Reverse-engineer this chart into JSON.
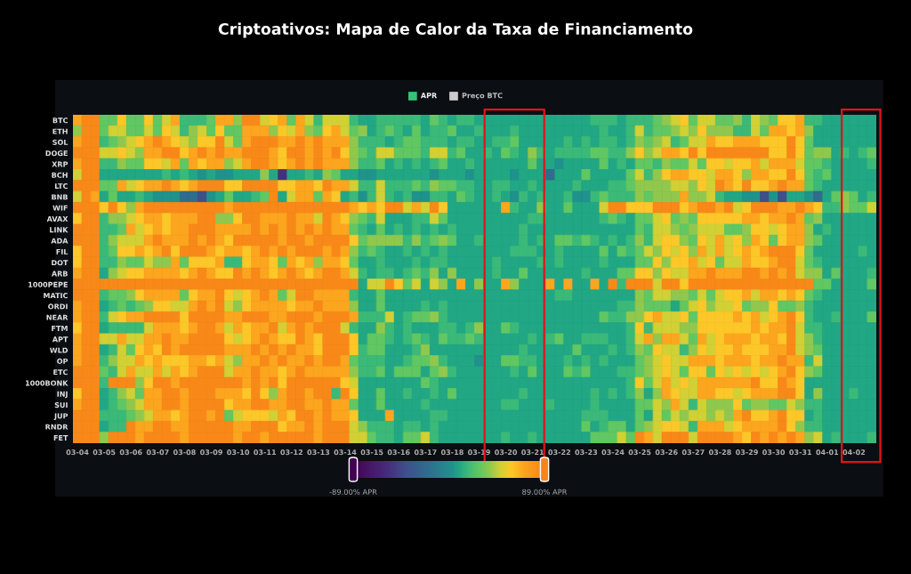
{
  "chart_data": {
    "type": "heatmap",
    "title": "Criptoativos: Mapa de Calor da Taxa de Financiamento",
    "annotations": [
      "APR",
      "Preço BTC"
    ],
    "categories": [
      "03-04",
      null,
      null,
      "03-05",
      null,
      null,
      "03-06",
      null,
      null,
      "03-07",
      null,
      null,
      "03-08",
      null,
      null,
      "03-09",
      null,
      null,
      "03-10",
      null,
      null,
      "03-11",
      null,
      null,
      "03-12",
      null,
      null,
      "03-13",
      null,
      null,
      "03-14",
      null,
      null,
      "03-15",
      null,
      null,
      "03-16",
      null,
      null,
      "03-17",
      null,
      null,
      "03-18",
      null,
      null,
      "03-19",
      null,
      null,
      "03-20",
      null,
      null,
      "03-21",
      null,
      null,
      "03-22",
      null,
      null,
      "03-23",
      null,
      null,
      "03-24",
      null,
      null,
      "03-25",
      null,
      null,
      "03-26",
      null,
      null,
      "03-27",
      null,
      null,
      "03-28",
      null,
      null,
      "03-29",
      null,
      null,
      "03-30",
      null,
      null,
      "03-31",
      null,
      null,
      "04-01",
      null,
      null,
      "04-02",
      null,
      null
    ],
    "y_categories": [
      "BTC",
      "ETH",
      "SOL",
      "DOGE",
      "XRP",
      "BCH",
      "LTC",
      "BNB",
      "WIF",
      "AVAX",
      "LINK",
      "ADA",
      "FIL",
      "DOT",
      "ARB",
      "1000PEPE",
      "MATIC",
      "ORDI",
      "NEAR",
      "FTM",
      "APT",
      "WLD",
      "OP",
      "ETC",
      "1000BONK",
      "INJ",
      "SUI",
      "JUP",
      "RNDR",
      "FET"
    ],
    "cells": [
      [
        70,
        85,
        85,
        28,
        28,
        58,
        28,
        28,
        58,
        28,
        48,
        70,
        18,
        18,
        18,
        28,
        70,
        70,
        38,
        85,
        85,
        48,
        58,
        70,
        28,
        70,
        48,
        18,
        48,
        48,
        48,
        18,
        10,
        10,
        18,
        18,
        18,
        18,
        18,
        10,
        28,
        18,
        10,
        18,
        18,
        10,
        10,
        10,
        10,
        10,
        10,
        10,
        10,
        10,
        10,
        10,
        10,
        10,
        18,
        18,
        18,
        10,
        18,
        18,
        18,
        28,
        38,
        48,
        58,
        28,
        48,
        48,
        28,
        28,
        38,
        18,
        48,
        38,
        28,
        58,
        58,
        70,
        18,
        18,
        10,
        10,
        10,
        10,
        10,
        10
      ],
      [
        38,
        85,
        85,
        28,
        48,
        48,
        28,
        28,
        48,
        28,
        58,
        48,
        18,
        38,
        48,
        28,
        58,
        28,
        28,
        70,
        70,
        70,
        38,
        58,
        48,
        70,
        38,
        28,
        58,
        70,
        48,
        28,
        38,
        10,
        18,
        28,
        18,
        10,
        28,
        10,
        18,
        18,
        28,
        10,
        10,
        18,
        10,
        10,
        10,
        18,
        10,
        10,
        10,
        10,
        10,
        10,
        10,
        10,
        10,
        18,
        10,
        10,
        18,
        48,
        18,
        28,
        28,
        38,
        48,
        38,
        58,
        38,
        38,
        38,
        18,
        18,
        48,
        28,
        70,
        70,
        58,
        70,
        38,
        10,
        10,
        10,
        10,
        10,
        10,
        10
      ],
      [
        70,
        85,
        85,
        18,
        28,
        38,
        48,
        58,
        70,
        85,
        70,
        58,
        48,
        38,
        58,
        58,
        85,
        48,
        28,
        70,
        85,
        85,
        85,
        70,
        70,
        85,
        70,
        85,
        70,
        70,
        70,
        38,
        18,
        18,
        18,
        10,
        18,
        28,
        28,
        18,
        18,
        18,
        10,
        18,
        18,
        10,
        10,
        18,
        18,
        28,
        10,
        10,
        10,
        10,
        10,
        18,
        10,
        18,
        10,
        18,
        18,
        10,
        18,
        38,
        28,
        38,
        48,
        18,
        28,
        48,
        48,
        70,
        58,
        58,
        70,
        70,
        70,
        58,
        58,
        58,
        85,
        58,
        28,
        10,
        10,
        10,
        10,
        10,
        10,
        10
      ],
      [
        85,
        85,
        85,
        48,
        48,
        58,
        48,
        38,
        70,
        70,
        85,
        85,
        58,
        70,
        85,
        70,
        85,
        70,
        70,
        85,
        85,
        85,
        70,
        58,
        85,
        85,
        70,
        85,
        70,
        85,
        58,
        38,
        28,
        18,
        48,
        48,
        28,
        28,
        28,
        18,
        48,
        48,
        18,
        28,
        10,
        10,
        18,
        10,
        28,
        18,
        10,
        38,
        18,
        10,
        18,
        18,
        18,
        18,
        28,
        28,
        18,
        18,
        38,
        58,
        38,
        48,
        70,
        70,
        58,
        85,
        58,
        85,
        85,
        85,
        85,
        85,
        85,
        85,
        58,
        58,
        85,
        58,
        28,
        38,
        38,
        10,
        18,
        10,
        18,
        28
      ],
      [
        70,
        85,
        85,
        18,
        18,
        38,
        28,
        28,
        58,
        58,
        48,
        70,
        28,
        70,
        58,
        70,
        70,
        38,
        48,
        70,
        85,
        85,
        70,
        58,
        70,
        85,
        70,
        85,
        70,
        70,
        70,
        38,
        18,
        18,
        28,
        10,
        18,
        10,
        18,
        10,
        18,
        28,
        10,
        10,
        18,
        10,
        10,
        10,
        10,
        10,
        10,
        28,
        10,
        10,
        3,
        10,
        10,
        10,
        10,
        28,
        10,
        18,
        10,
        28,
        28,
        18,
        38,
        28,
        28,
        48,
        28,
        58,
        58,
        48,
        58,
        58,
        70,
        48,
        70,
        70,
        70,
        48,
        28,
        28,
        18,
        10,
        10,
        10,
        10,
        18
      ],
      [
        48,
        85,
        85,
        10,
        10,
        10,
        10,
        10,
        10,
        10,
        18,
        10,
        18,
        10,
        3,
        10,
        3,
        3,
        10,
        10,
        10,
        38,
        10,
        -55,
        10,
        10,
        18,
        10,
        38,
        28,
        10,
        10,
        3,
        3,
        10,
        10,
        10,
        10,
        10,
        10,
        3,
        10,
        10,
        10,
        3,
        10,
        10,
        10,
        10,
        3,
        10,
        10,
        10,
        -20,
        10,
        10,
        10,
        28,
        10,
        10,
        10,
        10,
        28,
        48,
        18,
        38,
        58,
        70,
        70,
        58,
        58,
        48,
        70,
        70,
        58,
        38,
        70,
        70,
        58,
        58,
        85,
        58,
        28,
        18,
        28,
        10,
        10,
        10,
        10,
        10
      ],
      [
        85,
        85,
        85,
        28,
        28,
        70,
        48,
        58,
        70,
        70,
        85,
        70,
        58,
        70,
        85,
        85,
        85,
        58,
        58,
        85,
        85,
        85,
        85,
        58,
        58,
        70,
        70,
        58,
        85,
        70,
        70,
        48,
        18,
        18,
        48,
        18,
        18,
        18,
        28,
        18,
        38,
        28,
        28,
        18,
        18,
        10,
        10,
        18,
        18,
        10,
        10,
        18,
        10,
        10,
        10,
        10,
        18,
        10,
        10,
        10,
        18,
        18,
        28,
        38,
        38,
        38,
        38,
        48,
        48,
        38,
        58,
        48,
        85,
        70,
        58,
        85,
        58,
        58,
        70,
        85,
        70,
        70,
        28,
        18,
        10,
        10,
        10,
        10,
        10,
        10
      ],
      [
        48,
        85,
        70,
        10,
        28,
        10,
        10,
        18,
        10,
        3,
        3,
        3,
        -20,
        -20,
        -40,
        3,
        10,
        28,
        10,
        10,
        18,
        28,
        85,
        10,
        48,
        70,
        70,
        28,
        70,
        58,
        10,
        18,
        3,
        18,
        48,
        18,
        10,
        18,
        3,
        3,
        18,
        18,
        10,
        28,
        18,
        10,
        10,
        18,
        10,
        3,
        18,
        10,
        18,
        10,
        10,
        18,
        3,
        3,
        18,
        28,
        18,
        18,
        18,
        38,
        28,
        38,
        38,
        38,
        70,
        38,
        38,
        48,
        18,
        10,
        10,
        3,
        3,
        -40,
        3,
        -40,
        10,
        10,
        3,
        -20,
        10,
        28,
        38,
        28,
        10,
        18
      ],
      [
        85,
        85,
        85,
        58,
        85,
        58,
        38,
        70,
        85,
        85,
        85,
        85,
        85,
        85,
        85,
        85,
        85,
        70,
        85,
        85,
        85,
        85,
        85,
        85,
        85,
        85,
        85,
        85,
        85,
        85,
        85,
        70,
        58,
        70,
        58,
        85,
        85,
        48,
        70,
        48,
        85,
        58,
        10,
        10,
        10,
        10,
        10,
        10,
        70,
        18,
        10,
        10,
        38,
        10,
        10,
        28,
        10,
        10,
        10,
        48,
        85,
        85,
        58,
        58,
        58,
        85,
        85,
        85,
        58,
        70,
        85,
        85,
        70,
        85,
        48,
        58,
        85,
        85,
        85,
        70,
        70,
        85,
        70,
        58,
        18,
        18,
        38,
        28,
        28,
        48
      ],
      [
        58,
        85,
        85,
        18,
        38,
        38,
        48,
        58,
        70,
        70,
        58,
        70,
        70,
        70,
        85,
        85,
        38,
        38,
        58,
        85,
        85,
        70,
        70,
        70,
        85,
        70,
        70,
        48,
        85,
        70,
        58,
        38,
        28,
        18,
        48,
        10,
        10,
        10,
        18,
        18,
        48,
        28,
        10,
        10,
        10,
        10,
        10,
        10,
        10,
        10,
        10,
        18,
        18,
        10,
        10,
        10,
        10,
        10,
        10,
        18,
        28,
        18,
        10,
        28,
        28,
        48,
        58,
        28,
        38,
        28,
        58,
        58,
        58,
        58,
        58,
        70,
        70,
        58,
        70,
        70,
        85,
        70,
        28,
        38,
        10,
        10,
        10,
        10,
        10,
        10
      ],
      [
        85,
        85,
        85,
        18,
        18,
        28,
        70,
        48,
        58,
        70,
        58,
        70,
        70,
        85,
        85,
        85,
        70,
        70,
        70,
        70,
        85,
        70,
        85,
        70,
        85,
        70,
        85,
        70,
        85,
        70,
        70,
        28,
        18,
        10,
        28,
        10,
        18,
        10,
        18,
        10,
        18,
        10,
        18,
        10,
        10,
        10,
        10,
        10,
        10,
        10,
        18,
        10,
        10,
        10,
        10,
        10,
        10,
        10,
        10,
        10,
        10,
        10,
        10,
        28,
        18,
        48,
        48,
        38,
        28,
        38,
        48,
        48,
        48,
        28,
        28,
        38,
        58,
        58,
        48,
        58,
        70,
        70,
        38,
        10,
        18,
        10,
        10,
        10,
        10,
        10
      ],
      [
        85,
        85,
        85,
        18,
        38,
        48,
        48,
        48,
        70,
        85,
        70,
        70,
        70,
        85,
        70,
        85,
        70,
        58,
        85,
        85,
        85,
        85,
        85,
        70,
        85,
        85,
        70,
        85,
        85,
        85,
        85,
        58,
        28,
        38,
        38,
        38,
        38,
        18,
        38,
        18,
        28,
        38,
        28,
        10,
        10,
        18,
        10,
        10,
        10,
        10,
        18,
        10,
        18,
        10,
        28,
        28,
        18,
        28,
        18,
        10,
        18,
        10,
        18,
        38,
        18,
        48,
        58,
        58,
        38,
        28,
        58,
        48,
        70,
        48,
        58,
        38,
        70,
        58,
        28,
        58,
        70,
        70,
        38,
        28,
        10,
        10,
        10,
        10,
        10,
        10
      ],
      [
        58,
        85,
        85,
        18,
        28,
        58,
        58,
        70,
        58,
        70,
        85,
        58,
        85,
        85,
        85,
        70,
        58,
        70,
        70,
        58,
        70,
        85,
        70,
        85,
        70,
        85,
        85,
        85,
        70,
        85,
        70,
        38,
        18,
        28,
        18,
        10,
        10,
        18,
        10,
        18,
        10,
        18,
        10,
        10,
        10,
        10,
        10,
        10,
        10,
        18,
        18,
        18,
        10,
        10,
        18,
        10,
        10,
        10,
        10,
        28,
        10,
        28,
        18,
        28,
        48,
        38,
        58,
        48,
        58,
        38,
        70,
        48,
        70,
        48,
        58,
        70,
        58,
        70,
        85,
        85,
        85,
        58,
        28,
        10,
        10,
        10,
        10,
        10,
        18,
        10
      ],
      [
        58,
        85,
        85,
        18,
        18,
        38,
        28,
        28,
        48,
        38,
        38,
        70,
        28,
        58,
        58,
        58,
        70,
        18,
        18,
        58,
        70,
        70,
        58,
        28,
        70,
        58,
        70,
        38,
        70,
        70,
        58,
        28,
        10,
        10,
        18,
        10,
        10,
        10,
        18,
        10,
        18,
        18,
        10,
        10,
        10,
        10,
        10,
        18,
        10,
        10,
        10,
        10,
        18,
        10,
        18,
        10,
        10,
        10,
        10,
        18,
        10,
        10,
        10,
        28,
        28,
        58,
        38,
        58,
        58,
        70,
        48,
        58,
        28,
        48,
        48,
        70,
        58,
        58,
        70,
        85,
        85,
        48,
        28,
        18,
        10,
        10,
        10,
        10,
        10,
        10
      ],
      [
        70,
        85,
        85,
        10,
        38,
        48,
        58,
        58,
        70,
        70,
        70,
        70,
        58,
        70,
        85,
        70,
        58,
        58,
        85,
        70,
        85,
        70,
        58,
        70,
        85,
        70,
        58,
        70,
        85,
        85,
        70,
        48,
        18,
        10,
        18,
        18,
        10,
        18,
        28,
        18,
        38,
        10,
        38,
        10,
        10,
        10,
        10,
        18,
        10,
        10,
        28,
        10,
        10,
        10,
        10,
        10,
        10,
        18,
        10,
        10,
        10,
        28,
        28,
        58,
        58,
        38,
        58,
        48,
        48,
        70,
        70,
        85,
        70,
        70,
        70,
        85,
        85,
        70,
        85,
        70,
        85,
        48,
        38,
        38,
        10,
        28,
        10,
        10,
        10,
        18
      ],
      [
        85,
        85,
        85,
        85,
        85,
        85,
        85,
        85,
        85,
        85,
        85,
        85,
        85,
        85,
        85,
        85,
        85,
        85,
        85,
        85,
        85,
        85,
        85,
        85,
        85,
        85,
        85,
        85,
        85,
        85,
        85,
        85,
        10,
        48,
        48,
        85,
        58,
        28,
        48,
        10,
        48,
        38,
        10,
        70,
        10,
        38,
        10,
        10,
        70,
        38,
        10,
        10,
        10,
        70,
        10,
        70,
        10,
        10,
        70,
        10,
        85,
        18,
        85,
        85,
        85,
        48,
        85,
        85,
        58,
        85,
        85,
        85,
        85,
        85,
        85,
        85,
        85,
        85,
        85,
        85,
        85,
        85,
        85,
        28,
        28,
        10,
        10,
        10,
        10,
        28
      ],
      [
        85,
        85,
        85,
        18,
        28,
        28,
        38,
        58,
        70,
        70,
        70,
        70,
        28,
        58,
        70,
        70,
        85,
        58,
        48,
        58,
        70,
        85,
        70,
        28,
        48,
        85,
        85,
        70,
        70,
        70,
        70,
        18,
        10,
        10,
        28,
        10,
        10,
        10,
        10,
        10,
        10,
        10,
        10,
        10,
        10,
        10,
        10,
        10,
        10,
        10,
        10,
        10,
        10,
        10,
        18,
        18,
        10,
        10,
        10,
        10,
        10,
        10,
        10,
        38,
        28,
        48,
        48,
        38,
        38,
        28,
        48,
        28,
        48,
        58,
        58,
        70,
        48,
        70,
        70,
        58,
        70,
        58,
        28,
        18,
        10,
        10,
        10,
        10,
        10,
        10
      ],
      [
        70,
        85,
        85,
        10,
        18,
        28,
        18,
        28,
        38,
        58,
        58,
        48,
        48,
        70,
        85,
        70,
        85,
        48,
        38,
        58,
        70,
        70,
        70,
        70,
        58,
        70,
        70,
        85,
        70,
        70,
        70,
        38,
        10,
        10,
        28,
        10,
        10,
        10,
        10,
        18,
        10,
        18,
        10,
        10,
        10,
        10,
        10,
        10,
        10,
        10,
        10,
        10,
        10,
        10,
        10,
        10,
        10,
        10,
        10,
        10,
        10,
        18,
        18,
        38,
        28,
        28,
        28,
        10,
        28,
        48,
        58,
        38,
        48,
        48,
        58,
        28,
        38,
        38,
        58,
        28,
        28,
        38,
        18,
        10,
        10,
        10,
        10,
        10,
        10,
        10
      ],
      [
        70,
        85,
        85,
        18,
        48,
        58,
        70,
        70,
        85,
        85,
        85,
        85,
        58,
        85,
        85,
        85,
        85,
        70,
        70,
        85,
        85,
        85,
        70,
        70,
        85,
        85,
        85,
        70,
        85,
        85,
        85,
        70,
        18,
        18,
        18,
        48,
        10,
        18,
        28,
        28,
        38,
        18,
        10,
        10,
        10,
        10,
        10,
        10,
        10,
        10,
        10,
        10,
        10,
        10,
        10,
        10,
        10,
        10,
        10,
        28,
        18,
        18,
        38,
        38,
        58,
        70,
        48,
        48,
        58,
        28,
        58,
        58,
        58,
        58,
        70,
        58,
        70,
        48,
        58,
        70,
        85,
        58,
        18,
        10,
        10,
        18,
        10,
        10,
        10,
        28
      ],
      [
        58,
        85,
        85,
        10,
        18,
        18,
        18,
        18,
        48,
        70,
        70,
        70,
        58,
        70,
        85,
        85,
        70,
        48,
        70,
        58,
        70,
        70,
        85,
        48,
        70,
        85,
        70,
        85,
        85,
        85,
        48,
        18,
        10,
        10,
        38,
        18,
        10,
        18,
        10,
        10,
        10,
        18,
        18,
        10,
        18,
        38,
        10,
        10,
        28,
        18,
        10,
        10,
        10,
        10,
        10,
        10,
        10,
        10,
        10,
        10,
        10,
        10,
        18,
        58,
        18,
        48,
        48,
        48,
        38,
        38,
        58,
        58,
        58,
        58,
        58,
        58,
        70,
        58,
        70,
        70,
        85,
        48,
        18,
        18,
        10,
        10,
        10,
        10,
        10,
        10
      ],
      [
        70,
        85,
        85,
        48,
        48,
        70,
        48,
        48,
        70,
        70,
        85,
        70,
        70,
        85,
        85,
        85,
        85,
        58,
        48,
        58,
        70,
        85,
        70,
        58,
        58,
        85,
        70,
        58,
        85,
        85,
        85,
        58,
        10,
        28,
        28,
        18,
        10,
        18,
        28,
        18,
        10,
        28,
        18,
        18,
        28,
        18,
        10,
        10,
        10,
        10,
        10,
        18,
        10,
        18,
        28,
        10,
        10,
        18,
        18,
        18,
        10,
        10,
        18,
        48,
        70,
        38,
        70,
        70,
        48,
        28,
        70,
        48,
        58,
        70,
        70,
        70,
        58,
        70,
        70,
        58,
        85,
        48,
        38,
        18,
        10,
        10,
        10,
        10,
        10,
        10
      ],
      [
        70,
        85,
        85,
        10,
        18,
        48,
        28,
        58,
        70,
        58,
        85,
        70,
        85,
        85,
        85,
        85,
        85,
        70,
        70,
        70,
        85,
        70,
        85,
        70,
        85,
        70,
        70,
        58,
        85,
        85,
        85,
        58,
        18,
        28,
        28,
        10,
        10,
        10,
        18,
        38,
        10,
        10,
        10,
        10,
        10,
        10,
        10,
        10,
        10,
        10,
        18,
        10,
        10,
        10,
        10,
        10,
        28,
        10,
        10,
        10,
        18,
        10,
        18,
        38,
        28,
        58,
        48,
        48,
        18,
        38,
        58,
        48,
        58,
        58,
        70,
        58,
        58,
        58,
        70,
        70,
        85,
        48,
        38,
        28,
        10,
        10,
        10,
        10,
        10,
        10
      ],
      [
        70,
        85,
        85,
        18,
        38,
        48,
        48,
        70,
        58,
        70,
        58,
        58,
        58,
        70,
        70,
        58,
        70,
        48,
        38,
        70,
        70,
        85,
        70,
        85,
        70,
        70,
        85,
        70,
        85,
        85,
        70,
        28,
        18,
        18,
        18,
        10,
        10,
        18,
        28,
        28,
        38,
        18,
        10,
        10,
        10,
        3,
        10,
        10,
        28,
        28,
        18,
        18,
        10,
        10,
        10,
        18,
        10,
        18,
        10,
        18,
        10,
        10,
        10,
        28,
        38,
        48,
        58,
        48,
        48,
        70,
        70,
        70,
        58,
        70,
        70,
        70,
        58,
        70,
        70,
        85,
        70,
        70,
        18,
        48,
        10,
        10,
        10,
        10,
        10,
        10
      ],
      [
        85,
        85,
        85,
        28,
        18,
        48,
        70,
        48,
        48,
        70,
        48,
        70,
        58,
        70,
        85,
        85,
        85,
        48,
        70,
        70,
        85,
        70,
        70,
        58,
        70,
        85,
        70,
        70,
        70,
        70,
        70,
        38,
        18,
        18,
        28,
        10,
        28,
        28,
        28,
        10,
        28,
        38,
        18,
        10,
        10,
        10,
        10,
        10,
        10,
        18,
        10,
        28,
        10,
        10,
        10,
        28,
        18,
        28,
        10,
        10,
        10,
        18,
        18,
        28,
        38,
        48,
        58,
        48,
        28,
        58,
        58,
        28,
        58,
        48,
        58,
        48,
        58,
        48,
        58,
        70,
        85,
        58,
        38,
        28,
        10,
        10,
        10,
        10,
        10,
        10
      ],
      [
        85,
        85,
        85,
        18,
        85,
        85,
        85,
        38,
        58,
        85,
        85,
        70,
        85,
        85,
        85,
        85,
        85,
        85,
        85,
        70,
        85,
        70,
        85,
        58,
        85,
        85,
        85,
        85,
        85,
        85,
        58,
        48,
        10,
        10,
        10,
        10,
        10,
        10,
        10,
        28,
        18,
        10,
        10,
        10,
        10,
        10,
        10,
        10,
        10,
        10,
        10,
        10,
        10,
        10,
        10,
        10,
        10,
        10,
        10,
        10,
        10,
        10,
        18,
        58,
        28,
        48,
        70,
        48,
        58,
        48,
        70,
        70,
        70,
        70,
        70,
        70,
        85,
        58,
        58,
        85,
        70,
        58,
        10,
        10,
        10,
        10,
        10,
        10,
        10,
        10
      ],
      [
        58,
        85,
        85,
        10,
        18,
        38,
        48,
        28,
        70,
        70,
        85,
        85,
        70,
        85,
        85,
        85,
        70,
        70,
        70,
        58,
        85,
        58,
        38,
        70,
        85,
        85,
        70,
        85,
        85,
        18,
        85,
        58,
        10,
        10,
        28,
        10,
        10,
        18,
        10,
        10,
        18,
        10,
        28,
        10,
        10,
        10,
        10,
        10,
        10,
        10,
        18,
        10,
        10,
        10,
        10,
        10,
        10,
        10,
        18,
        10,
        18,
        10,
        18,
        38,
        10,
        38,
        70,
        58,
        48,
        48,
        70,
        70,
        58,
        58,
        48,
        58,
        70,
        70,
        70,
        85,
        85,
        58,
        10,
        38,
        10,
        10,
        10,
        18,
        10,
        10
      ],
      [
        70,
        85,
        85,
        10,
        18,
        28,
        38,
        48,
        70,
        70,
        85,
        85,
        70,
        85,
        85,
        85,
        85,
        58,
        70,
        70,
        85,
        85,
        70,
        70,
        85,
        85,
        70,
        70,
        85,
        70,
        70,
        28,
        10,
        10,
        28,
        10,
        10,
        10,
        10,
        18,
        10,
        10,
        10,
        10,
        10,
        10,
        10,
        10,
        18,
        18,
        10,
        10,
        10,
        18,
        10,
        10,
        10,
        10,
        18,
        10,
        10,
        10,
        10,
        28,
        28,
        48,
        38,
        70,
        48,
        18,
        48,
        38,
        38,
        38,
        58,
        28,
        38,
        38,
        28,
        28,
        48,
        38,
        18,
        18,
        10,
        10,
        10,
        10,
        10,
        10
      ],
      [
        85,
        85,
        85,
        18,
        18,
        18,
        28,
        38,
        48,
        70,
        70,
        58,
        70,
        85,
        85,
        70,
        85,
        28,
        48,
        58,
        58,
        58,
        48,
        70,
        58,
        85,
        85,
        70,
        85,
        70,
        70,
        58,
        10,
        10,
        10,
        70,
        10,
        10,
        10,
        10,
        18,
        18,
        10,
        10,
        10,
        10,
        10,
        10,
        10,
        10,
        10,
        10,
        10,
        10,
        10,
        10,
        10,
        18,
        18,
        18,
        10,
        10,
        10,
        28,
        10,
        48,
        28,
        48,
        38,
        48,
        48,
        38,
        48,
        38,
        70,
        85,
        58,
        58,
        70,
        85,
        58,
        58,
        10,
        18,
        10,
        10,
        10,
        10,
        10,
        10
      ],
      [
        85,
        85,
        85,
        10,
        18,
        18,
        85,
        70,
        70,
        85,
        85,
        70,
        70,
        85,
        85,
        85,
        85,
        85,
        70,
        70,
        85,
        85,
        85,
        58,
        70,
        70,
        85,
        70,
        85,
        85,
        85,
        48,
        38,
        18,
        18,
        18,
        10,
        18,
        18,
        10,
        18,
        10,
        10,
        10,
        10,
        10,
        10,
        10,
        10,
        10,
        10,
        10,
        10,
        10,
        10,
        10,
        10,
        28,
        10,
        18,
        28,
        28,
        10,
        28,
        38,
        48,
        58,
        58,
        48,
        18,
        70,
        70,
        70,
        48,
        58,
        70,
        70,
        70,
        70,
        85,
        58,
        38,
        18,
        18,
        10,
        10,
        10,
        10,
        10,
        10
      ],
      [
        85,
        85,
        85,
        38,
        85,
        85,
        85,
        70,
        85,
        85,
        85,
        85,
        70,
        85,
        85,
        85,
        85,
        85,
        70,
        85,
        85,
        70,
        85,
        85,
        85,
        85,
        85,
        70,
        85,
        85,
        85,
        48,
        48,
        28,
        18,
        18,
        10,
        28,
        28,
        48,
        18,
        10,
        10,
        10,
        10,
        10,
        10,
        10,
        18,
        10,
        10,
        18,
        10,
        10,
        10,
        10,
        10,
        10,
        28,
        28,
        28,
        48,
        28,
        85,
        70,
        48,
        85,
        85,
        85,
        48,
        85,
        85,
        85,
        85,
        70,
        58,
        85,
        70,
        85,
        70,
        85,
        70,
        38,
        48,
        10,
        18,
        10,
        10,
        10,
        18
      ]
    ],
    "clim": [
      -89,
      89
    ],
    "cticks": [
      {
        "value": -89,
        "label": "-89.00% APR"
      },
      {
        "value": 89,
        "label": "89.00% APR"
      }
    ]
  }
}
